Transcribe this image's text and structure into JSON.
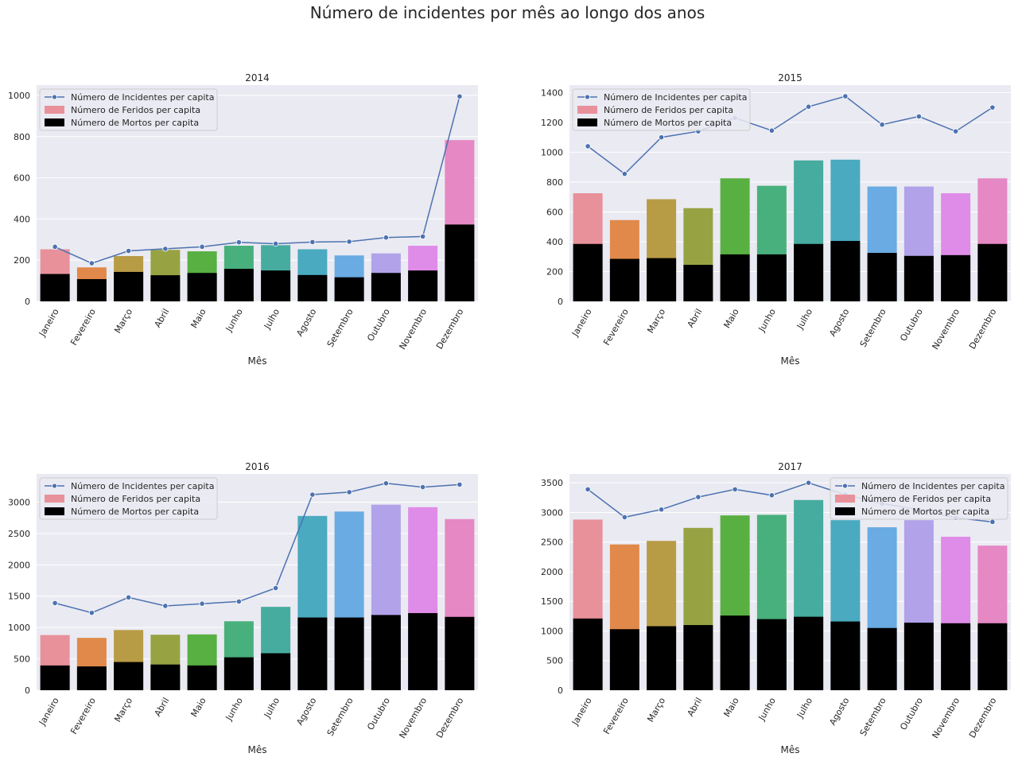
{
  "suptitle": "Número de incidentes por mês ao longo dos anos",
  "colors": {
    "panel_bg": "#eaeaf2",
    "grid": "#ffffff",
    "line": "#4c72b0",
    "mortos": "#000000",
    "month_palette": [
      "#e8919b",
      "#e0894a",
      "#b89b45",
      "#97a343",
      "#58b042",
      "#48b07c",
      "#46ac9f",
      "#4aaac0",
      "#69abe2",
      "#b1a2ea",
      "#df8ce8",
      "#e588c4"
    ]
  },
  "legend_labels": {
    "incidentes": "Número de Incidentes per capita",
    "feridos": "Número de Feridos per capita",
    "mortos": "Número de Mortos per capita"
  },
  "chart_data": [
    {
      "type": "bar",
      "title": "2014",
      "xlabel": "Mês",
      "ylabel": "",
      "ylim": [
        0,
        1050
      ],
      "yticks": [
        0,
        200,
        400,
        600,
        800,
        1000
      ],
      "legend_position": "top-left",
      "categories": [
        "Janeiro",
        "Fevereiro",
        "Março",
        "Abril",
        "Maio",
        "Junho",
        "Julho",
        "Agosto",
        "Setembro",
        "Outubro",
        "Novembro",
        "Dezembro"
      ],
      "series": [
        {
          "name": "Número de Incidentes per capita",
          "kind": "line",
          "values": [
            265,
            185,
            245,
            255,
            265,
            287,
            280,
            288,
            290,
            310,
            315,
            995
          ]
        },
        {
          "name": "Número de Feridos per capita",
          "kind": "bar",
          "values": [
            253,
            165,
            220,
            250,
            243,
            270,
            273,
            253,
            223,
            233,
            270,
            783
          ]
        },
        {
          "name": "Número de Mortos per capita",
          "kind": "bar",
          "values": [
            133,
            108,
            143,
            127,
            138,
            158,
            150,
            128,
            117,
            138,
            150,
            373
          ]
        }
      ]
    },
    {
      "type": "bar",
      "title": "2015",
      "xlabel": "Mês",
      "ylabel": "",
      "ylim": [
        0,
        1450
      ],
      "yticks": [
        0,
        200,
        400,
        600,
        800,
        1000,
        1200,
        1400
      ],
      "legend_position": "top-left",
      "categories": [
        "Janeiro",
        "Fevereiro",
        "Março",
        "Abril",
        "Maio",
        "Junho",
        "Julho",
        "Agosto",
        "Setembro",
        "Outubro",
        "Novembro",
        "Dezembro"
      ],
      "series": [
        {
          "name": "Número de Incidentes per capita",
          "kind": "line",
          "values": [
            1040,
            855,
            1100,
            1140,
            1230,
            1145,
            1305,
            1375,
            1185,
            1240,
            1140,
            1300
          ]
        },
        {
          "name": "Número de Feridos per capita",
          "kind": "bar",
          "values": [
            725,
            545,
            685,
            625,
            825,
            775,
            945,
            950,
            770,
            770,
            725,
            825
          ]
        },
        {
          "name": "Número de Mortos per capita",
          "kind": "bar",
          "values": [
            385,
            285,
            290,
            245,
            315,
            315,
            385,
            405,
            325,
            305,
            310,
            385
          ]
        }
      ]
    },
    {
      "type": "bar",
      "title": "2016",
      "xlabel": "Mês",
      "ylabel": "",
      "ylim": [
        0,
        3450
      ],
      "yticks": [
        0,
        500,
        1000,
        1500,
        2000,
        2500,
        3000
      ],
      "legend_position": "top-left",
      "categories": [
        "Janeiro",
        "Fevereiro",
        "Março",
        "Abril",
        "Maio",
        "Junho",
        "Julho",
        "Agosto",
        "Setembro",
        "Outubro",
        "Novembro",
        "Dezembro"
      ],
      "series": [
        {
          "name": "Número de Incidentes per capita",
          "kind": "line",
          "values": [
            1390,
            1235,
            1480,
            1345,
            1380,
            1415,
            1630,
            3120,
            3160,
            3300,
            3240,
            3280
          ]
        },
        {
          "name": "Número de Feridos per capita",
          "kind": "bar",
          "values": [
            880,
            835,
            960,
            885,
            890,
            1100,
            1330,
            2780,
            2850,
            2960,
            2920,
            2730
          ]
        },
        {
          "name": "Número de Mortos per capita",
          "kind": "bar",
          "values": [
            395,
            380,
            450,
            410,
            395,
            525,
            590,
            1160,
            1160,
            1200,
            1230,
            1170
          ]
        }
      ]
    },
    {
      "type": "bar",
      "title": "2017",
      "xlabel": "Mês",
      "ylabel": "",
      "ylim": [
        0,
        3650
      ],
      "yticks": [
        0,
        500,
        1000,
        1500,
        2000,
        2500,
        3000,
        3500
      ],
      "legend_position": "top-right",
      "categories": [
        "Janeiro",
        "Fevereiro",
        "Março",
        "Abril",
        "Maio",
        "Junho",
        "Julho",
        "Agosto",
        "Setembro",
        "Outubro",
        "Novembro",
        "Dezembro"
      ],
      "series": [
        {
          "name": "Número de Incidentes per capita",
          "kind": "line",
          "values": [
            3390,
            2920,
            3050,
            3260,
            3390,
            3290,
            3500,
            3300,
            3150,
            3050,
            2910,
            2840
          ]
        },
        {
          "name": "Número de Feridos per capita",
          "kind": "bar",
          "values": [
            2880,
            2460,
            2520,
            2740,
            2950,
            2960,
            3210,
            2870,
            2750,
            2870,
            2590,
            2440
          ]
        },
        {
          "name": "Número de Mortos per capita",
          "kind": "bar",
          "values": [
            1210,
            1030,
            1080,
            1100,
            1260,
            1200,
            1240,
            1160,
            1050,
            1140,
            1130,
            1130
          ]
        }
      ]
    }
  ]
}
